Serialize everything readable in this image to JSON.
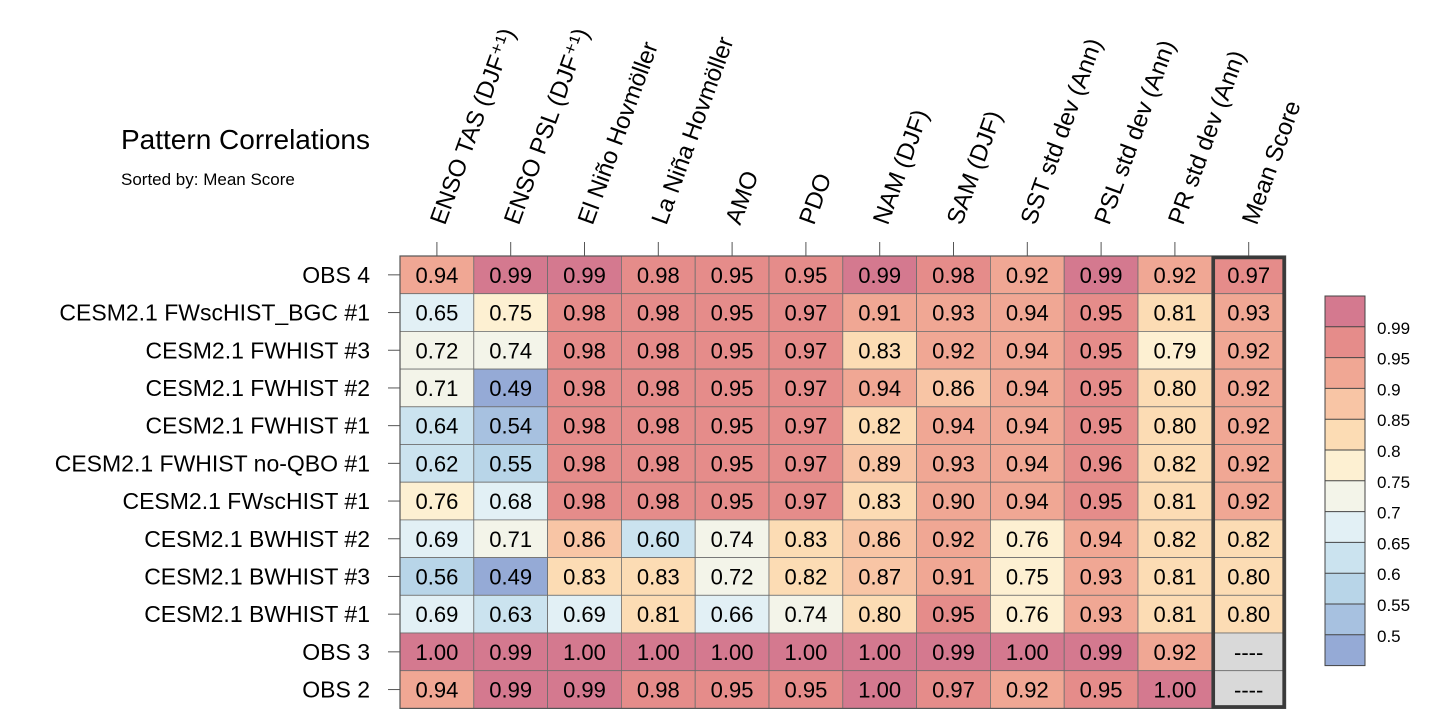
{
  "header": {
    "title": "Pattern Correlations",
    "subtitle": "Sorted by: Mean Score"
  },
  "chart_data": {
    "type": "heatmap",
    "title": "Pattern Correlations",
    "subtitle": "Sorted by: Mean Score",
    "columns": [
      "ENSO TAS (DJF⁺¹)",
      "ENSO PSL (DJF⁺¹)",
      "El Niño Hovmöller",
      "La Niña Hovmöller",
      "AMO",
      "PDO",
      "NAM (DJF)",
      "SAM (DJF)",
      "SST std dev (Ann)",
      "PSL std dev (Ann)",
      "PR std dev (Ann)",
      "Mean Score"
    ],
    "rows": [
      "OBS 4",
      "CESM2.1 FWscHIST_BGC #1",
      "CESM2.1 FWHIST #3",
      "CESM2.1 FWHIST #2",
      "CESM2.1 FWHIST #1",
      "CESM2.1 FWHIST no-QBO #1",
      "CESM2.1 FWscHIST #1",
      "CESM2.1 BWHIST #2",
      "CESM2.1 BWHIST #3",
      "CESM2.1 BWHIST #1",
      "OBS 3",
      "OBS 2"
    ],
    "values": [
      [
        "0.94",
        "0.99",
        "0.99",
        "0.98",
        "0.95",
        "0.95",
        "0.99",
        "0.98",
        "0.92",
        "0.99",
        "0.92",
        "0.97"
      ],
      [
        "0.65",
        "0.75",
        "0.98",
        "0.98",
        "0.95",
        "0.97",
        "0.91",
        "0.93",
        "0.94",
        "0.95",
        "0.81",
        "0.93"
      ],
      [
        "0.72",
        "0.74",
        "0.98",
        "0.98",
        "0.95",
        "0.97",
        "0.83",
        "0.92",
        "0.94",
        "0.95",
        "0.79",
        "0.92"
      ],
      [
        "0.71",
        "0.49",
        "0.98",
        "0.98",
        "0.95",
        "0.97",
        "0.94",
        "0.86",
        "0.94",
        "0.95",
        "0.80",
        "0.92"
      ],
      [
        "0.64",
        "0.54",
        "0.98",
        "0.98",
        "0.95",
        "0.97",
        "0.82",
        "0.94",
        "0.94",
        "0.95",
        "0.80",
        "0.92"
      ],
      [
        "0.62",
        "0.55",
        "0.98",
        "0.98",
        "0.95",
        "0.97",
        "0.89",
        "0.93",
        "0.94",
        "0.96",
        "0.82",
        "0.92"
      ],
      [
        "0.76",
        "0.68",
        "0.98",
        "0.98",
        "0.95",
        "0.97",
        "0.83",
        "0.90",
        "0.94",
        "0.95",
        "0.81",
        "0.92"
      ],
      [
        "0.69",
        "0.71",
        "0.86",
        "0.60",
        "0.74",
        "0.83",
        "0.86",
        "0.92",
        "0.76",
        "0.94",
        "0.82",
        "0.82"
      ],
      [
        "0.56",
        "0.49",
        "0.83",
        "0.83",
        "0.72",
        "0.82",
        "0.87",
        "0.91",
        "0.75",
        "0.93",
        "0.81",
        "0.80"
      ],
      [
        "0.69",
        "0.63",
        "0.69",
        "0.81",
        "0.66",
        "0.74",
        "0.80",
        "0.95",
        "0.76",
        "0.93",
        "0.81",
        "0.80"
      ],
      [
        "1.00",
        "0.99",
        "1.00",
        "1.00",
        "1.00",
        "1.00",
        "1.00",
        "0.99",
        "1.00",
        "0.99",
        "0.92",
        "----"
      ],
      [
        "0.94",
        "0.99",
        "0.99",
        "0.98",
        "0.95",
        "0.95",
        "1.00",
        "0.97",
        "0.92",
        "0.95",
        "1.00",
        "----"
      ]
    ],
    "missing_label": "----",
    "highlight_column": "Mean Score",
    "colorbar": {
      "ticks": [
        "0.99",
        "0.95",
        "0.9",
        "0.85",
        "0.8",
        "0.75",
        "0.7",
        "0.65",
        "0.6",
        "0.55",
        "0.5"
      ],
      "levels": [
        0.99,
        0.95,
        0.9,
        0.85,
        0.8,
        0.75,
        0.7,
        0.65,
        0.6,
        0.55,
        0.5
      ],
      "colors": [
        "#d4798f",
        "#e58c8a",
        "#f0a794",
        "#f8c5a5",
        "#fcdcb4",
        "#fdf0d2",
        "#f3f4e9",
        "#e2f0f5",
        "#cbe3ef",
        "#b8d5e8",
        "#a7c1e0",
        "#95aad6"
      ],
      "missing_color": "#d9d9d9"
    }
  }
}
